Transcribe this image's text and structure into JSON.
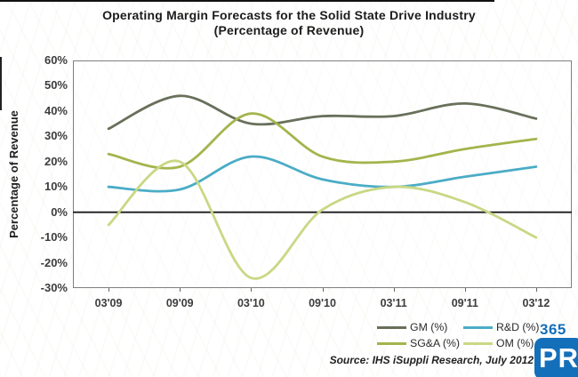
{
  "page": {
    "title_line1": "Operating Margin Forecasts for the Solid State Drive Industry",
    "title_line2": "(Percentage of Revenue)",
    "source": "Source: IHS iSuppli Research, July 2012"
  },
  "logo": {
    "top_text": "365",
    "box_text": "PR",
    "brand_color": "#146fbb"
  },
  "chart_data": {
    "type": "line",
    "title": "Operating Margin Forecasts for the Solid State Drive Industry (Percentage of Revenue)",
    "categories": [
      "03'09",
      "09'09",
      "03'10",
      "09'10",
      "03'11",
      "09'11",
      "03'12"
    ],
    "series": [
      {
        "name": "GM (%)",
        "color": "#68705a",
        "values": [
          33,
          46,
          35,
          38,
          38,
          43,
          37
        ]
      },
      {
        "name": "R&D (%)",
        "color": "#4bacc6",
        "values": [
          10,
          9,
          22,
          13,
          10,
          14,
          18
        ]
      },
      {
        "name": "SG&A (%)",
        "color": "#a4b44c",
        "values": [
          23,
          18,
          39,
          22,
          20,
          25,
          29
        ]
      },
      {
        "name": "OM (%)",
        "color": "#c9d885",
        "values": [
          -5,
          20,
          -26,
          1,
          10,
          4,
          -10
        ]
      }
    ],
    "xlabel": "",
    "ylabel": "Percentage of Revenue",
    "ylim": [
      -30,
      60
    ],
    "yticks": [
      "60%",
      "50%",
      "40%",
      "30%",
      "20%",
      "10%",
      "0%",
      "-10%",
      "-20%",
      "-30%"
    ],
    "zero_line": true,
    "grid": false,
    "legend_position": "bottom-right",
    "axis_color": "#7f7f7f",
    "zero_line_color": "#1a1a1a"
  }
}
